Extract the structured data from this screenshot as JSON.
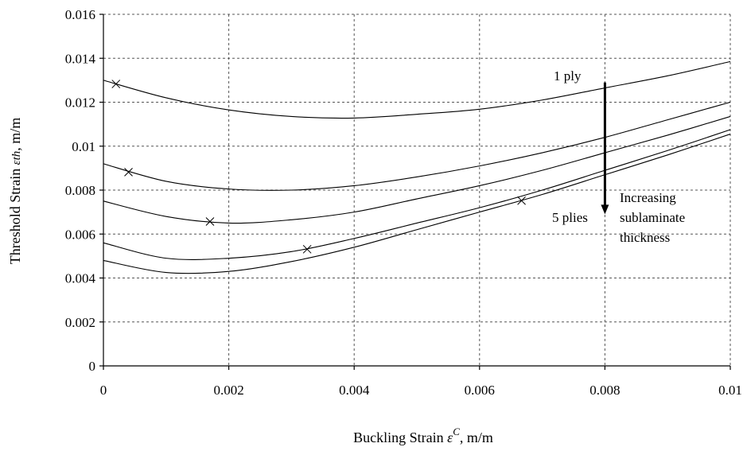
{
  "chart_data": {
    "type": "line",
    "xlabel_text": "Buckling Strain",
    "xlabel_symbol": "ε",
    "xlabel_superscript": "C",
    "xlabel_unit": ", m/m",
    "ylabel_text": "Threshold Strain",
    "ylabel_symbol": "εth",
    "ylabel_unit": ", m/m",
    "xlim": [
      0,
      0.01
    ],
    "ylim": [
      0,
      0.016
    ],
    "x_ticks": [
      "0",
      "0.002",
      "0.004",
      "0.006",
      "0.008",
      "0.01"
    ],
    "y_ticks": [
      "0",
      "0.002",
      "0.004",
      "0.006",
      "0.008",
      "0.01",
      "0.012",
      "0.014",
      "0.016"
    ],
    "grid": true,
    "series": [
      {
        "x": [
          0,
          0.001,
          0.002,
          0.003,
          0.004,
          0.005,
          0.006,
          0.007,
          0.008,
          0.009,
          0.01
        ],
        "y": [
          0.013,
          0.0122,
          0.01165,
          0.01135,
          0.01128,
          0.01145,
          0.01168,
          0.0121,
          0.01265,
          0.0132,
          0.01385
        ],
        "marker": {
          "x": 0.0002,
          "y": 0.01283
        }
      },
      {
        "x": [
          0,
          0.001,
          0.002,
          0.003,
          0.004,
          0.005,
          0.006,
          0.007,
          0.008,
          0.009,
          0.01
        ],
        "y": [
          0.0092,
          0.0084,
          0.00805,
          0.008,
          0.0082,
          0.0086,
          0.0091,
          0.0097,
          0.0104,
          0.0112,
          0.012
        ],
        "marker": {
          "x": 0.0004,
          "y": 0.00882
        }
      },
      {
        "x": [
          0,
          0.001,
          0.002,
          0.003,
          0.004,
          0.005,
          0.006,
          0.007,
          0.008,
          0.009,
          0.01
        ],
        "y": [
          0.0075,
          0.0068,
          0.0065,
          0.00665,
          0.007,
          0.0076,
          0.0082,
          0.0089,
          0.0097,
          0.0105,
          0.01135
        ],
        "marker": {
          "x": 0.0017,
          "y": 0.00657
        }
      },
      {
        "x": [
          0,
          0.001,
          0.002,
          0.003,
          0.004,
          0.005,
          0.006,
          0.007,
          0.008,
          0.009,
          0.01
        ],
        "y": [
          0.0056,
          0.0049,
          0.0049,
          0.0052,
          0.0058,
          0.0065,
          0.0072,
          0.008,
          0.0089,
          0.0098,
          0.01075
        ],
        "marker": {
          "x": 0.00325,
          "y": 0.00531
        }
      },
      {
        "x": [
          0,
          0.001,
          0.002,
          0.003,
          0.004,
          0.005,
          0.006,
          0.007,
          0.008,
          0.009,
          0.01
        ],
        "y": [
          0.0048,
          0.00425,
          0.0043,
          0.00475,
          0.0054,
          0.0062,
          0.007,
          0.0078,
          0.0087,
          0.0096,
          0.01055
        ],
        "marker": {
          "x": 0.00667,
          "y": 0.00752
        }
      }
    ],
    "annotations": {
      "top_label": "1 ply",
      "bottom_label": "5 plies",
      "arrow_text_1": "Increasing",
      "arrow_text_2": "sublaminate",
      "arrow_text_3": "thickness",
      "arrow_x": 0.008,
      "arrow_y_start": 0.0129,
      "arrow_y_end": 0.0069
    }
  }
}
